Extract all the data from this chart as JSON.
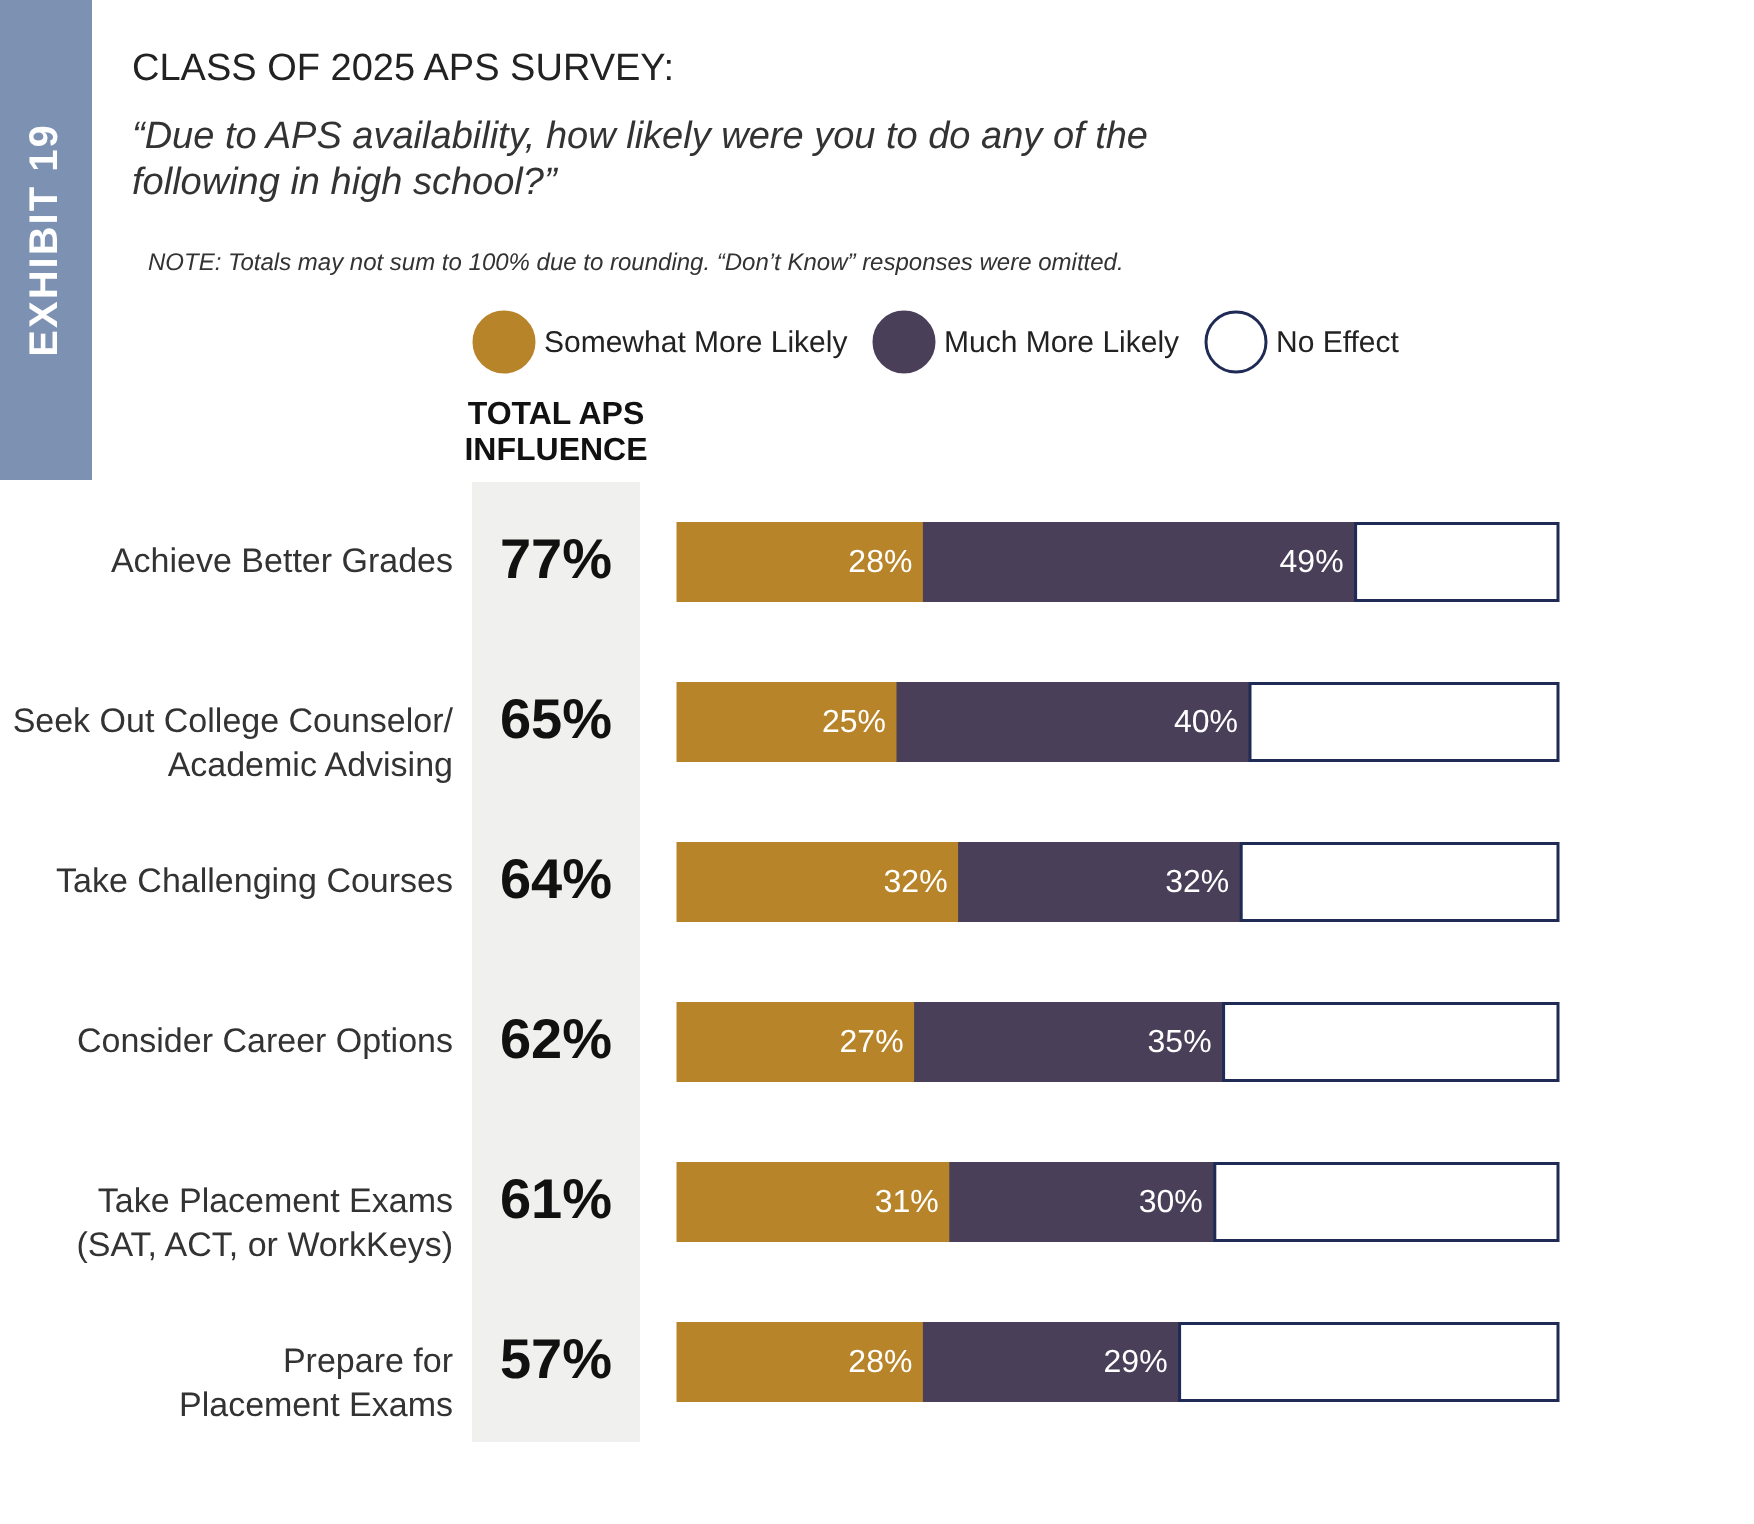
{
  "chart_data": {
    "type": "bar",
    "orientation": "horizontal",
    "stacked": true,
    "title": "CLASS OF 2025 APS SURVEY:",
    "subtitle": "“Due to APS availability, how likely were you to do any of the following in high school?”",
    "annotations": [
      "EXHIBIT 19",
      "NOTE: Totals may not sum to 100% due to rounding. “Don’t Know” responses were omitted.",
      "TOTAL APS\nINFLUENCE",
      "77%",
      "65%",
      "64%",
      "62%",
      "61%",
      "57%"
    ],
    "categories": [
      "Achieve Better Grades",
      "Seek Out College Counselor/\nAcademic Advising",
      "Take Challenging Courses",
      "Consider Career Options",
      "Take Placement Exams\n(SAT, ACT, or WorkKeys)",
      "Prepare for\nPlacement Exams"
    ],
    "xlim": [
      0,
      100
    ],
    "series": [
      {
        "name": "Somewhat More Likely",
        "color": "#b8842a",
        "values": [
          28,
          25,
          32,
          27,
          31,
          28
        ],
        "value_labels": [
          "28%",
          "25%",
          "32%",
          "27%",
          "31%",
          "28%"
        ]
      },
      {
        "name": "Much More Likely",
        "color": "#4a3f58",
        "values": [
          49,
          40,
          32,
          35,
          30,
          29
        ],
        "value_labels": [
          "49%",
          "40%",
          "32%",
          "35%",
          "30%",
          "29%"
        ]
      },
      {
        "name": "No Effect",
        "color": "#ffffff",
        "values": [
          23,
          35,
          36,
          38,
          39,
          43
        ]
      }
    ],
    "legend": "top"
  }
}
